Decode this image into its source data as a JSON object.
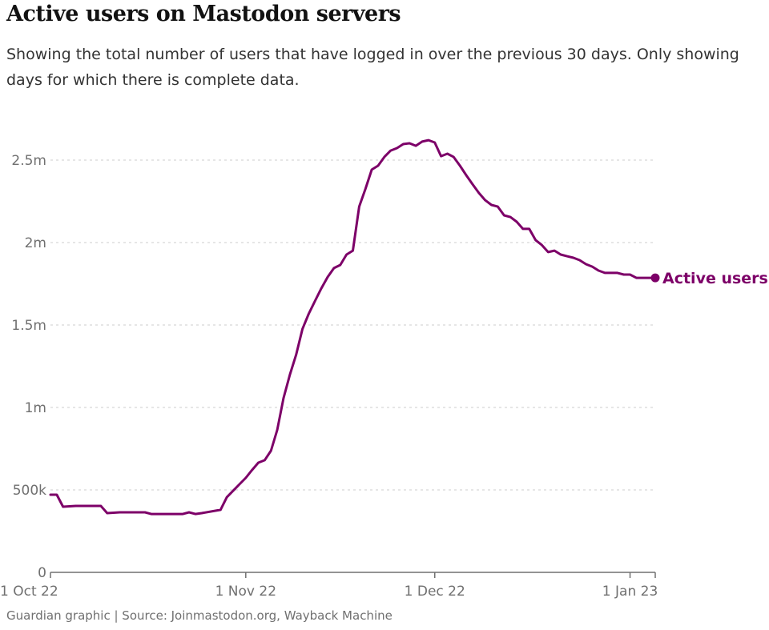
{
  "title": "Active users on Mastodon servers",
  "subtitle": "Showing the total number of users that have logged in over the previous 30 days. Only showing days for which there is complete data.",
  "footer": "Guardian graphic | Source: Joinmastodon.org, Wayback Machine",
  "colors": {
    "line": "#7d0068",
    "grid": "#cccccc",
    "axis": "#707070"
  },
  "chart_data": {
    "type": "line",
    "title": "Active users on Mastodon servers",
    "xlabel": "",
    "ylabel": "",
    "xlim": [
      "2022-10-01",
      "2023-01-05"
    ],
    "ylim": [
      0,
      2500000
    ],
    "grid": true,
    "y_ticks": [
      {
        "value": 0,
        "label": "0"
      },
      {
        "value": 500000,
        "label": "500k"
      },
      {
        "value": 1000000,
        "label": "1m"
      },
      {
        "value": 1500000,
        "label": "1.5m"
      },
      {
        "value": 2000000,
        "label": "2m"
      },
      {
        "value": 2500000,
        "label": "2.5m"
      }
    ],
    "x_ticks": [
      {
        "date": "2022-10-01",
        "label": "1 Oct 22"
      },
      {
        "date": "2022-11-01",
        "label": "1 Nov 22"
      },
      {
        "date": "2022-12-01",
        "label": "1 Dec 22"
      },
      {
        "date": "2023-01-01",
        "label": "1 Jan 23"
      }
    ],
    "series": [
      {
        "name": "Active users",
        "points": [
          [
            "2022-10-01",
            471000
          ],
          [
            "2022-10-02",
            471000
          ],
          [
            "2022-10-03",
            398000
          ],
          [
            "2022-10-05",
            403000
          ],
          [
            "2022-10-09",
            403000
          ],
          [
            "2022-10-10",
            359000
          ],
          [
            "2022-10-12",
            364000
          ],
          [
            "2022-10-16",
            364000
          ],
          [
            "2022-10-17",
            354000
          ],
          [
            "2022-10-22",
            354000
          ],
          [
            "2022-10-23",
            364000
          ],
          [
            "2022-10-24",
            354000
          ],
          [
            "2022-10-25",
            359000
          ],
          [
            "2022-10-28",
            379000
          ],
          [
            "2022-10-29",
            456000
          ],
          [
            "2022-10-31",
            534000
          ],
          [
            "2022-11-01",
            573000
          ],
          [
            "2022-11-02",
            621000
          ],
          [
            "2022-11-03",
            665000
          ],
          [
            "2022-11-04",
            680000
          ],
          [
            "2022-11-05",
            738000
          ],
          [
            "2022-11-06",
            864000
          ],
          [
            "2022-11-07",
            1058000
          ],
          [
            "2022-11-08",
            1199000
          ],
          [
            "2022-11-09",
            1320000
          ],
          [
            "2022-11-10",
            1476000
          ],
          [
            "2022-11-11",
            1568000
          ],
          [
            "2022-11-12",
            1646000
          ],
          [
            "2022-11-13",
            1723000
          ],
          [
            "2022-11-14",
            1791000
          ],
          [
            "2022-11-15",
            1845000
          ],
          [
            "2022-11-16",
            1864000
          ],
          [
            "2022-11-17",
            1927000
          ],
          [
            "2022-11-18",
            1951000
          ],
          [
            "2022-11-19",
            2218000
          ],
          [
            "2022-11-20",
            2325000
          ],
          [
            "2022-11-21",
            2442000
          ],
          [
            "2022-11-22",
            2466000
          ],
          [
            "2022-11-23",
            2519000
          ],
          [
            "2022-11-24",
            2558000
          ],
          [
            "2022-11-25",
            2573000
          ],
          [
            "2022-11-26",
            2597000
          ],
          [
            "2022-11-27",
            2602000
          ],
          [
            "2022-11-28",
            2587000
          ],
          [
            "2022-11-29",
            2612000
          ],
          [
            "2022-11-30",
            2621000
          ],
          [
            "2022-12-01",
            2607000
          ],
          [
            "2022-12-02",
            2524000
          ],
          [
            "2022-12-03",
            2539000
          ],
          [
            "2022-12-04",
            2519000
          ],
          [
            "2022-12-05",
            2466000
          ],
          [
            "2022-12-06",
            2408000
          ],
          [
            "2022-12-07",
            2354000
          ],
          [
            "2022-12-08",
            2301000
          ],
          [
            "2022-12-09",
            2257000
          ],
          [
            "2022-12-10",
            2228000
          ],
          [
            "2022-12-11",
            2218000
          ],
          [
            "2022-12-12",
            2165000
          ],
          [
            "2022-12-13",
            2155000
          ],
          [
            "2022-12-14",
            2126000
          ],
          [
            "2022-12-15",
            2083000
          ],
          [
            "2022-12-16",
            2083000
          ],
          [
            "2022-12-17",
            2015000
          ],
          [
            "2022-12-18",
            1985000
          ],
          [
            "2022-12-19",
            1942000
          ],
          [
            "2022-12-20",
            1951000
          ],
          [
            "2022-12-21",
            1927000
          ],
          [
            "2022-12-22",
            1917000
          ],
          [
            "2022-12-23",
            1908000
          ],
          [
            "2022-12-24",
            1893000
          ],
          [
            "2022-12-25",
            1869000
          ],
          [
            "2022-12-26",
            1854000
          ],
          [
            "2022-12-27",
            1830000
          ],
          [
            "2022-12-28",
            1816000
          ],
          [
            "2022-12-29",
            1816000
          ],
          [
            "2022-12-30",
            1816000
          ],
          [
            "2022-12-31",
            1806000
          ],
          [
            "2023-01-01",
            1806000
          ],
          [
            "2023-01-02",
            1786000
          ],
          [
            "2023-01-03",
            1786000
          ],
          [
            "2023-01-05",
            1786000
          ]
        ]
      }
    ],
    "annotations": [
      {
        "text": "Active users",
        "position": "line-end"
      }
    ],
    "legend": "none"
  }
}
